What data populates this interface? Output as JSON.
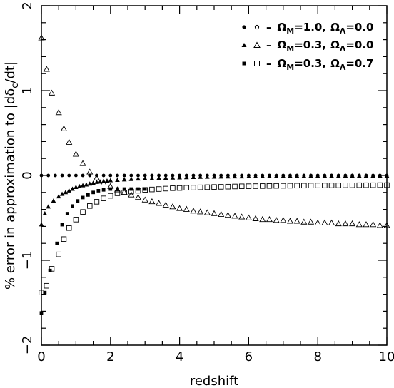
{
  "chart_data": {
    "type": "scatter",
    "xlabel": "redshift",
    "ylabel_parts": {
      "pre": "% error in approximation to |d",
      "delta": "δ",
      "sub": "c",
      "post": "/dt|"
    },
    "xlim": [
      0,
      10
    ],
    "ylim": [
      -2,
      2
    ],
    "x_ticks": [
      "0",
      "2",
      "4",
      "6",
      "8",
      "10"
    ],
    "y_ticks": [
      "−2",
      "−1",
      "0",
      "1",
      "2"
    ],
    "grid": false,
    "legend_position": "top-right",
    "legend": [
      {
        "markers": [
          "filled-circle",
          "open-circle"
        ],
        "text": {
          "dash": "–",
          "om": "Ω",
          "om_sub": "M",
          "om_val": "=1.0,",
          "ol": "Ω",
          "ol_sub": "Λ",
          "ol_val": "=0.0"
        }
      },
      {
        "markers": [
          "filled-triangle",
          "open-triangle"
        ],
        "text": {
          "dash": "–",
          "om": "Ω",
          "om_sub": "M",
          "om_val": "=0.3,",
          "ol": "Ω",
          "ol_sub": "Λ",
          "ol_val": "=0.0"
        }
      },
      {
        "markers": [
          "filled-square",
          "open-square"
        ],
        "text": {
          "dash": "–",
          "om": "Ω",
          "om_sub": "M",
          "om_val": "=0.3,",
          "ol": "Ω",
          "ol_sub": "Λ",
          "ol_val": "=0.7"
        }
      }
    ],
    "series": [
      {
        "marker": "filled-circle",
        "x": [
          0,
          0.2,
          0.4,
          0.6,
          0.8,
          1.0,
          1.2,
          1.4,
          1.6,
          1.8,
          2.0,
          2.2,
          2.4,
          2.6,
          2.8,
          3.0,
          3.2,
          3.4,
          3.6,
          3.8,
          4.0,
          4.2,
          4.4,
          4.6,
          4.8,
          5.0,
          5.2,
          5.4,
          5.6,
          5.8,
          6.0,
          6.2,
          6.4,
          6.6,
          6.8,
          7.0,
          7.2,
          7.4,
          7.6,
          7.8,
          8.0,
          8.2,
          8.4,
          8.6,
          8.8,
          9.0,
          9.2,
          9.4,
          9.6,
          9.8,
          10.0
        ],
        "y": [
          0,
          0,
          0,
          0,
          0,
          0,
          0,
          0,
          0,
          0,
          0,
          0,
          0,
          0,
          0,
          0,
          0,
          0,
          0,
          0,
          0,
          0,
          0,
          0,
          0,
          0,
          0,
          0,
          0,
          0,
          0,
          0,
          0,
          0,
          0,
          0,
          0,
          0,
          0,
          0,
          0,
          0,
          0,
          0,
          0,
          0,
          0,
          0,
          0,
          0,
          0
        ]
      },
      {
        "marker": "open-triangle",
        "x": [
          0,
          0.15,
          0.3,
          0.5,
          0.65,
          0.8,
          1.0,
          1.2,
          1.4,
          1.6,
          1.8,
          2.0,
          2.2,
          2.4,
          2.6,
          2.8,
          3.0,
          3.2,
          3.4,
          3.6,
          3.8,
          4.0,
          4.2,
          4.4,
          4.6,
          4.8,
          5.0,
          5.2,
          5.4,
          5.6,
          5.8,
          6.0,
          6.2,
          6.4,
          6.6,
          6.8,
          7.0,
          7.2,
          7.4,
          7.6,
          7.8,
          8.0,
          8.2,
          8.4,
          8.6,
          8.8,
          9.0,
          9.2,
          9.4,
          9.6,
          9.8,
          10.0
        ],
        "y": [
          1.62,
          1.25,
          0.97,
          0.74,
          0.55,
          0.39,
          0.25,
          0.14,
          0.04,
          -0.03,
          -0.09,
          -0.13,
          -0.17,
          -0.2,
          -0.23,
          -0.26,
          -0.29,
          -0.31,
          -0.33,
          -0.35,
          -0.37,
          -0.39,
          -0.4,
          -0.42,
          -0.43,
          -0.44,
          -0.45,
          -0.46,
          -0.47,
          -0.48,
          -0.49,
          -0.5,
          -0.51,
          -0.52,
          -0.52,
          -0.53,
          -0.53,
          -0.54,
          -0.54,
          -0.55,
          -0.55,
          -0.56,
          -0.56,
          -0.56,
          -0.57,
          -0.57,
          -0.57,
          -0.58,
          -0.58,
          -0.58,
          -0.59,
          -0.59
        ]
      },
      {
        "marker": "filled-triangle",
        "x": [
          0,
          0.1,
          0.2,
          0.35,
          0.5,
          0.6,
          0.7,
          0.8,
          0.9,
          1.0,
          1.1,
          1.2,
          1.3,
          1.4,
          1.5,
          1.6,
          1.7,
          1.8,
          1.9,
          2.0,
          2.2,
          2.4,
          2.6,
          2.8,
          3.0,
          3.2,
          3.4,
          3.6,
          3.8,
          4.0,
          4.2,
          4.4,
          4.6,
          4.8,
          5.0,
          5.2,
          5.4,
          5.6,
          5.8,
          6.0,
          6.2,
          6.4,
          6.6,
          6.8,
          7.0,
          7.2,
          7.4,
          7.6,
          7.8,
          8.0,
          8.2,
          8.4,
          8.6,
          8.8,
          9.0,
          9.2,
          9.4,
          9.6,
          9.8,
          10.0
        ],
        "y": [
          -0.58,
          -0.45,
          -0.37,
          -0.3,
          -0.25,
          -0.22,
          -0.2,
          -0.18,
          -0.16,
          -0.14,
          -0.13,
          -0.12,
          -0.11,
          -0.1,
          -0.09,
          -0.08,
          -0.075,
          -0.07,
          -0.065,
          -0.06,
          -0.055,
          -0.05,
          -0.045,
          -0.04,
          -0.038,
          -0.035,
          -0.032,
          -0.03,
          -0.028,
          -0.026,
          -0.024,
          -0.022,
          -0.02,
          -0.019,
          -0.018,
          -0.017,
          -0.016,
          -0.015,
          -0.014,
          -0.013,
          -0.012,
          -0.011,
          -0.011,
          -0.01,
          -0.01,
          -0.009,
          -0.009,
          -0.008,
          -0.008,
          -0.008,
          -0.007,
          -0.007,
          -0.007,
          -0.006,
          -0.006,
          -0.006,
          -0.006,
          -0.005,
          -0.005,
          -0.005
        ]
      },
      {
        "marker": "filled-square",
        "x": [
          0,
          0.1,
          0.25,
          0.45,
          0.6,
          0.75,
          0.9,
          1.05,
          1.2,
          1.35,
          1.5,
          1.65,
          1.8,
          2.0,
          2.2,
          2.4,
          2.6,
          2.8,
          3.0
        ],
        "y": [
          -1.62,
          -1.38,
          -1.12,
          -0.8,
          -0.58,
          -0.45,
          -0.36,
          -0.3,
          -0.26,
          -0.23,
          -0.2,
          -0.18,
          -0.17,
          -0.16,
          -0.16,
          -0.16,
          -0.16,
          -0.16,
          -0.16
        ]
      },
      {
        "marker": "open-square",
        "x": [
          0,
          0.15,
          0.3,
          0.5,
          0.65,
          0.8,
          1.0,
          1.2,
          1.4,
          1.6,
          1.8,
          2.0,
          2.2,
          2.4,
          2.6,
          2.8,
          3.0,
          3.2,
          3.4,
          3.6,
          3.8,
          4.0,
          4.2,
          4.4,
          4.6,
          4.8,
          5.0,
          5.2,
          5.4,
          5.6,
          5.8,
          6.0,
          6.2,
          6.4,
          6.6,
          6.8,
          7.0,
          7.2,
          7.4,
          7.6,
          7.8,
          8.0,
          8.2,
          8.4,
          8.6,
          8.8,
          9.0,
          9.2,
          9.4,
          9.6,
          9.8,
          10.0
        ],
        "y": [
          -1.38,
          -1.3,
          -1.1,
          -0.93,
          -0.75,
          -0.62,
          -0.52,
          -0.43,
          -0.36,
          -0.31,
          -0.27,
          -0.24,
          -0.21,
          -0.2,
          -0.19,
          -0.18,
          -0.17,
          -0.165,
          -0.16,
          -0.155,
          -0.15,
          -0.148,
          -0.145,
          -0.143,
          -0.14,
          -0.138,
          -0.136,
          -0.134,
          -0.132,
          -0.13,
          -0.128,
          -0.127,
          -0.126,
          -0.125,
          -0.124,
          -0.123,
          -0.122,
          -0.121,
          -0.12,
          -0.12,
          -0.119,
          -0.118,
          -0.118,
          -0.117,
          -0.117,
          -0.116,
          -0.116,
          -0.115,
          -0.115,
          -0.115,
          -0.114,
          -0.114
        ]
      }
    ]
  }
}
